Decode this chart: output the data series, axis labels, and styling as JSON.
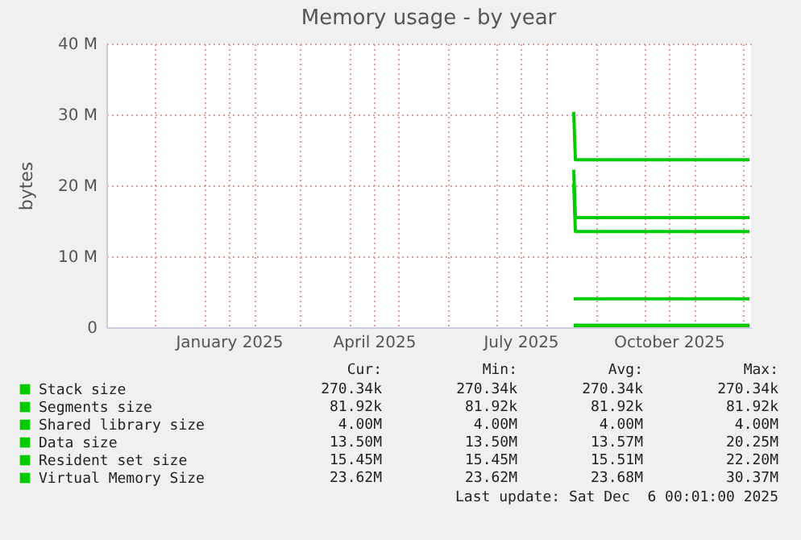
{
  "chart_data": {
    "type": "line",
    "title": "Memory usage - by year",
    "ylabel": "bytes",
    "xlim": [
      "2024-11-01",
      "2025-12-06"
    ],
    "xticks": [
      {
        "value": "2024-11-01",
        "label": null
      },
      {
        "value": "2024-12-01",
        "label": null
      },
      {
        "value": "2025-01-01",
        "label": null
      },
      {
        "value": "2025-01-16",
        "label": "January 2025"
      },
      {
        "value": "2025-02-01",
        "label": null
      },
      {
        "value": "2025-03-01",
        "label": null
      },
      {
        "value": "2025-04-01",
        "label": null
      },
      {
        "value": "2025-04-16",
        "label": "April 2025"
      },
      {
        "value": "2025-05-01",
        "label": null
      },
      {
        "value": "2025-06-01",
        "label": null
      },
      {
        "value": "2025-07-01",
        "label": null
      },
      {
        "value": "2025-07-16",
        "label": "July 2025"
      },
      {
        "value": "2025-08-01",
        "label": null
      },
      {
        "value": "2025-09-01",
        "label": null
      },
      {
        "value": "2025-10-01",
        "label": null
      },
      {
        "value": "2025-10-16",
        "label": "October 2025"
      },
      {
        "value": "2025-11-01",
        "label": null
      },
      {
        "value": "2025-12-01",
        "label": null
      }
    ],
    "ylim": [
      0,
      40000000
    ],
    "yticks": [
      {
        "value": 0,
        "label": "0"
      },
      {
        "value": 10000000,
        "label": "10 M"
      },
      {
        "value": 20000000,
        "label": "20 M"
      },
      {
        "value": 30000000,
        "label": "30 M"
      },
      {
        "value": 40000000,
        "label": "40 M"
      }
    ],
    "grid": true,
    "legend": "bottom left",
    "series": [
      {
        "name": "Stack size",
        "color": "#00cc00",
        "x": [
          "2025-08-18",
          "2025-12-05"
        ],
        "values": [
          270340,
          270340
        ]
      },
      {
        "name": "Segments size",
        "color": "#00cc00",
        "x": [
          "2025-08-18",
          "2025-12-05"
        ],
        "values": [
          81920,
          81920
        ]
      },
      {
        "name": "Shared library size",
        "color": "#00cc00",
        "x": [
          "2025-08-18",
          "2025-12-05"
        ],
        "values": [
          4000000,
          4000000
        ]
      },
      {
        "name": "Data size",
        "color": "#00cc00",
        "x": [
          "2025-08-18",
          "2025-08-19",
          "2025-12-05"
        ],
        "values": [
          20250000,
          13500000,
          13500000
        ]
      },
      {
        "name": "Resident set size",
        "color": "#00cc00",
        "x": [
          "2025-08-18",
          "2025-08-19",
          "2025-12-05"
        ],
        "values": [
          22200000,
          15450000,
          15450000
        ]
      },
      {
        "name": "Virtual Memory Size",
        "color": "#00cc00",
        "x": [
          "2025-08-18",
          "2025-08-19",
          "2025-12-05"
        ],
        "values": [
          30370000,
          23620000,
          23620000
        ]
      }
    ],
    "annotations": [
      "Cur:",
      "Min:",
      "Avg:",
      "Max:",
      "270.34k",
      "270.34k",
      "270.34k",
      "270.34k",
      "81.92k",
      "81.92k",
      "81.92k",
      "81.92k",
      "4.00M",
      "4.00M",
      "4.00M",
      "4.00M",
      "13.50M",
      "13.50M",
      "13.57M",
      "20.25M",
      "15.45M",
      "15.45M",
      "15.51M",
      "22.20M",
      "23.62M",
      "23.62M",
      "23.68M",
      "30.37M",
      "Last update: Sat Dec  6 00:01:00 2025"
    ]
  }
}
